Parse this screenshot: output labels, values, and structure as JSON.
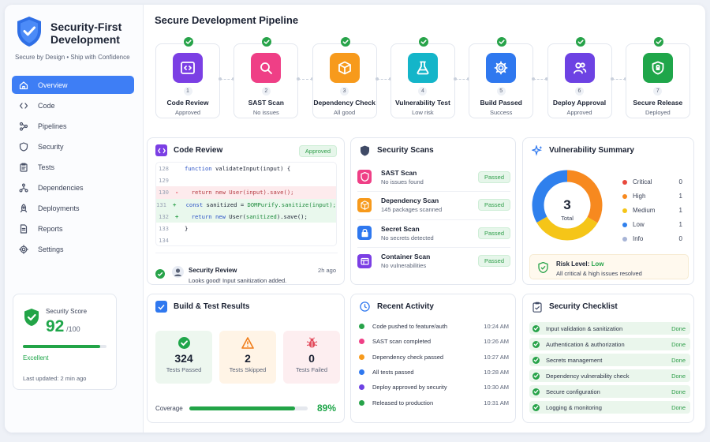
{
  "brand": {
    "title_line1": "Security-First",
    "title_line2": "Development",
    "tagline": "Secure by Design • Ship with Confidence",
    "shield_color": "#2f6fe6"
  },
  "nav": [
    {
      "label": "Overview",
      "icon": "home-icon",
      "active": true
    },
    {
      "label": "Code",
      "icon": "code-icon"
    },
    {
      "label": "Pipelines",
      "icon": "pipeline-icon"
    },
    {
      "label": "Security",
      "icon": "shield-icon"
    },
    {
      "label": "Tests",
      "icon": "clipboard-icon"
    },
    {
      "label": "Dependencies",
      "icon": "network-icon"
    },
    {
      "label": "Deployments",
      "icon": "rocket-icon"
    },
    {
      "label": "Reports",
      "icon": "document-icon"
    },
    {
      "label": "Settings",
      "icon": "gear-icon"
    }
  ],
  "score": {
    "label": "Security Score",
    "value": "92",
    "max": "/100",
    "fraction": 0.92,
    "rating": "Excellent",
    "updated": "Last updated: 2 min ago"
  },
  "pipeline": {
    "title": "Secure Development Pipeline",
    "steps": [
      {
        "num": "1",
        "name": "Code Review",
        "status": "Approved",
        "icon": "code-icon",
        "color": "#7b3fe4"
      },
      {
        "num": "2",
        "name": "SAST Scan",
        "status": "No issues",
        "icon": "search-icon",
        "color": "#ef3f86"
      },
      {
        "num": "3",
        "name": "Dependency Check",
        "status": "All good",
        "icon": "cube-icon",
        "color": "#f79a1c"
      },
      {
        "num": "4",
        "name": "Vulnerability Test",
        "status": "Low risk",
        "icon": "flask-icon",
        "color": "#14b5c9"
      },
      {
        "num": "5",
        "name": "Build Passed",
        "status": "Success",
        "icon": "gear-icon",
        "color": "#2f78ef"
      },
      {
        "num": "6",
        "name": "Deploy Approval",
        "status": "Approved",
        "icon": "users-icon",
        "color": "#6d42e3"
      },
      {
        "num": "7",
        "name": "Secure Release",
        "status": "Deployed",
        "icon": "shield-lock-icon",
        "color": "#1fa64a"
      }
    ]
  },
  "code_review": {
    "title": "Code Review",
    "badge": "Approved",
    "lines": [
      {
        "n": "128",
        "mark": "",
        "type": "ctx",
        "html": "<span class='k'>function</span> validateInput(input) {"
      },
      {
        "n": "129",
        "mark": "",
        "type": "ctx",
        "html": ""
      },
      {
        "n": "130",
        "mark": "-",
        "type": "rem",
        "html": "&nbsp;&nbsp;<span class='r'>return new User(input).save();</span>"
      },
      {
        "n": "131",
        "mark": "+",
        "type": "add",
        "html": "&nbsp;&nbsp;<span class='k'>const</span> sanitized = <span class='s'>DOMPurify.sanitize(input);</span>"
      },
      {
        "n": "132",
        "mark": "+",
        "type": "add",
        "html": "&nbsp;&nbsp;<span class='k'>return new</span> User(<span class='s'>sanitized</span>).save();"
      },
      {
        "n": "133",
        "mark": "",
        "type": "ctx",
        "html": "}"
      },
      {
        "n": "134",
        "mark": "",
        "type": "ctx",
        "html": ""
      }
    ],
    "reviewer_title": "Security Review",
    "reviewer_time": "2h ago",
    "reviewer_msg": "Looks good! Input sanitization added."
  },
  "scans": {
    "title": "Security Scans",
    "items": [
      {
        "name": "SAST Scan",
        "desc": "No issues found",
        "status": "Passed",
        "icon": "shield-icon",
        "color": "#ef3f86"
      },
      {
        "name": "Dependency Scan",
        "desc": "145 packages scanned",
        "status": "Passed",
        "icon": "cube-icon",
        "color": "#f79a1c"
      },
      {
        "name": "Secret Scan",
        "desc": "No secrets detected",
        "status": "Passed",
        "icon": "lock-icon",
        "color": "#2f78ef"
      },
      {
        "name": "Container Scan",
        "desc": "No vulnerabilities",
        "status": "Passed",
        "icon": "container-icon",
        "color": "#7b3fe4"
      }
    ]
  },
  "vuln": {
    "title": "Vulnerability Summary",
    "total": "3",
    "total_label": "Total",
    "levels": [
      {
        "name": "Critical",
        "count": "0",
        "color": "#e8483d"
      },
      {
        "name": "High",
        "count": "1",
        "color": "#f7891f"
      },
      {
        "name": "Medium",
        "count": "1",
        "color": "#f5c518"
      },
      {
        "name": "Low",
        "count": "1",
        "color": "#2f80ed"
      },
      {
        "name": "Info",
        "count": "0",
        "color": "#a7b4d6"
      }
    ],
    "risk_label": "Risk Level:",
    "risk_value": "Low",
    "risk_note": "All critical & high issues resolved"
  },
  "build": {
    "title": "Build & Test Results",
    "stats": [
      {
        "value": "324",
        "label": "Tests Passed",
        "icon": "check-circle-icon",
        "color": "#1fa64a",
        "bg": "#edf7ef"
      },
      {
        "value": "2",
        "label": "Tests Skipped",
        "icon": "warning-icon",
        "color": "#f07d1a",
        "bg": "#fff4e6"
      },
      {
        "value": "0",
        "label": "Tests Failed",
        "icon": "bug-icon",
        "color": "#e24b5c",
        "bg": "#fdeef0"
      }
    ],
    "coverage_label": "Coverage",
    "coverage_value": "89%",
    "coverage_fraction": 0.89
  },
  "activity": {
    "title": "Recent Activity",
    "items": [
      {
        "text": "Code pushed to feature/auth",
        "time": "10:24 AM",
        "color": "#27a349"
      },
      {
        "text": "SAST scan completed",
        "time": "10:26 AM",
        "color": "#ef3f86"
      },
      {
        "text": "Dependency check passed",
        "time": "10:27 AM",
        "color": "#f79a1c"
      },
      {
        "text": "All tests passed",
        "time": "10:28 AM",
        "color": "#2f78ef"
      },
      {
        "text": "Deploy approved by security",
        "time": "10:30 AM",
        "color": "#6d42e3"
      },
      {
        "text": "Released to production",
        "time": "10:31 AM",
        "color": "#27a349"
      }
    ]
  },
  "checklist": {
    "title": "Security Checklist",
    "items": [
      {
        "text": "Input validation & sanitization",
        "status": "Done"
      },
      {
        "text": "Authentication & authorization",
        "status": "Done"
      },
      {
        "text": "Secrets management",
        "status": "Done"
      },
      {
        "text": "Dependency vulnerability check",
        "status": "Done"
      },
      {
        "text": "Secure configuration",
        "status": "Done"
      },
      {
        "text": "Logging & monitoring",
        "status": "Done"
      }
    ]
  }
}
